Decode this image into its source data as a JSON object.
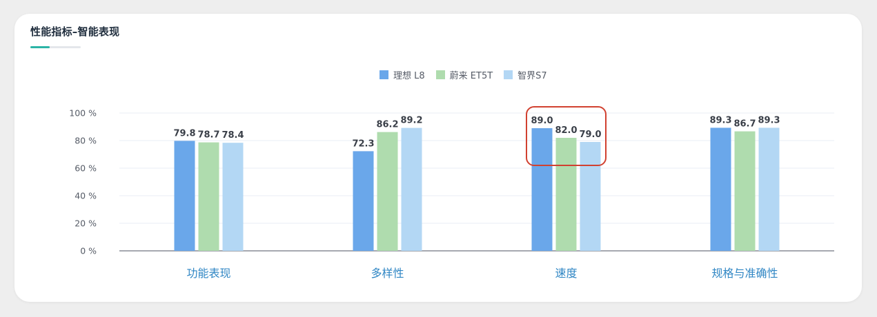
{
  "header": {
    "title": "性能指标–智能表现"
  },
  "colors": {
    "accent": "#2bb4a6",
    "highlight": "#d1402f"
  },
  "chart_data": {
    "type": "bar",
    "categories": [
      "功能表现",
      "多样性",
      "速度",
      "规格与准确性"
    ],
    "series": [
      {
        "name": "理想  L8",
        "color": "#6aa7ea",
        "values": [
          79.8,
          72.3,
          89.0,
          89.3
        ]
      },
      {
        "name": "蔚来 ET5T",
        "color": "#afdcae",
        "values": [
          78.7,
          86.2,
          82.0,
          86.7
        ]
      },
      {
        "name": "智界S7",
        "color": "#b3d7f4",
        "values": [
          78.4,
          89.2,
          79.0,
          89.3
        ]
      }
    ],
    "ylim": [
      0,
      100
    ],
    "yticks": [
      "0 %",
      "20 %",
      "40 %",
      "60 %",
      "80 %",
      "100 %"
    ],
    "grid": true,
    "legend_position": "top-center",
    "data_labels": true,
    "highlighted_category": "速度"
  }
}
